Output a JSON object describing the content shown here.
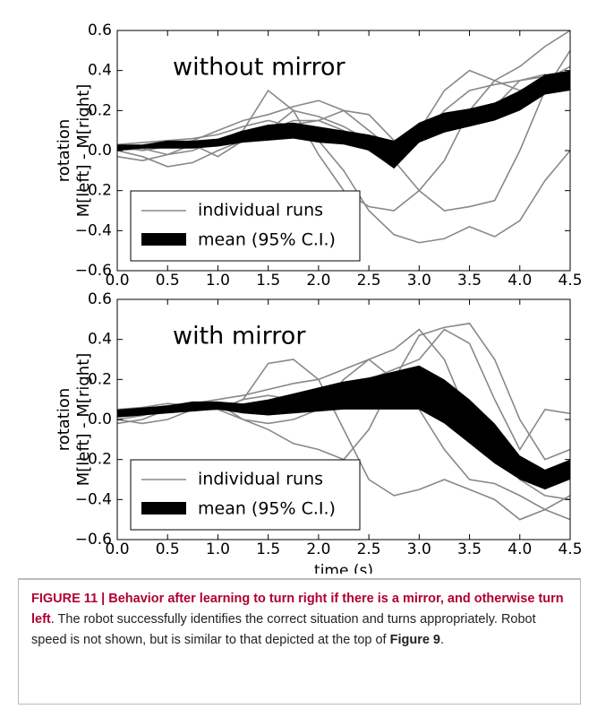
{
  "chart_data": [
    {
      "type": "line",
      "annotation": "without mirror",
      "ylabel": [
        "rotation",
        "M[left] - M[right]"
      ],
      "xlim": [
        0,
        4.5
      ],
      "ylim": [
        -0.6,
        0.6
      ],
      "xticks": [
        {
          "value": 0,
          "label": "0.0"
        },
        0.5,
        {
          "value": 1,
          "label": "1.0"
        },
        1.5,
        {
          "value": 2,
          "label": "2.0"
        },
        2.5,
        {
          "value": 3,
          "label": "3.0"
        },
        3.5,
        {
          "value": 4,
          "label": "4.0"
        },
        4.5
      ],
      "yticks": [
        {
          "value": -0.6,
          "label": "−0.6"
        },
        {
          "value": -0.4,
          "label": "−0.4"
        },
        {
          "value": -0.2,
          "label": "−0.2"
        },
        {
          "value": 0,
          "label": "0.0"
        },
        0.2,
        0.4,
        0.6
      ],
      "legend": "lower left",
      "runs": {
        "name": "individual runs",
        "color": "#888888",
        "x": [
          0,
          0.25,
          0.5,
          0.75,
          1,
          1.25,
          1.5,
          1.75,
          2,
          2.25,
          2.5,
          2.75,
          3,
          3.25,
          3.5,
          3.75,
          4,
          4.25,
          4.5
        ],
        "lines": [
          [
            0.0,
            0.01,
            -0.02,
            0.0,
            0.05,
            0.1,
            0.3,
            0.2,
            -0.02,
            -0.2,
            -0.28,
            -0.3,
            -0.2,
            -0.05,
            0.2,
            0.35,
            0.42,
            0.52,
            0.6
          ],
          [
            0.03,
            0.04,
            0.05,
            0.06,
            0.08,
            0.12,
            0.15,
            0.12,
            0.05,
            -0.1,
            -0.3,
            -0.42,
            -0.46,
            -0.44,
            -0.38,
            -0.43,
            -0.35,
            -0.15,
            0.0
          ],
          [
            0.0,
            -0.03,
            -0.08,
            -0.06,
            0.0,
            0.05,
            0.1,
            0.2,
            0.17,
            0.12,
            0.05,
            -0.05,
            -0.2,
            -0.3,
            -0.28,
            -0.25,
            0.0,
            0.3,
            0.5
          ],
          [
            0.02,
            0.0,
            0.02,
            0.05,
            0.1,
            0.15,
            0.18,
            0.22,
            0.25,
            0.2,
            0.1,
            0.0,
            0.05,
            0.2,
            0.3,
            0.33,
            0.35,
            0.37,
            0.38
          ],
          [
            0.0,
            0.02,
            0.05,
            0.03,
            -0.03,
            0.05,
            0.1,
            0.15,
            0.15,
            0.2,
            0.18,
            0.05,
            0.1,
            0.3,
            0.4,
            0.35,
            0.3,
            0.35,
            0.42
          ],
          [
            -0.03,
            -0.05,
            -0.02,
            0.03,
            0.05,
            0.08,
            0.1,
            0.13,
            0.15,
            0.1,
            0.0,
            -0.08,
            0.1,
            0.12,
            0.2,
            0.22,
            0.35,
            0.38,
            0.32
          ]
        ]
      },
      "band": {
        "name": "mean (95% C.I.)",
        "color": "#000000",
        "x": [
          0,
          0.25,
          0.5,
          0.75,
          1,
          1.25,
          1.5,
          1.75,
          2,
          2.25,
          2.5,
          2.75,
          3,
          3.25,
          3.5,
          3.75,
          4,
          4.25,
          4.5
        ],
        "lower": [
          0.0,
          0.01,
          0.01,
          0.01,
          0.02,
          0.04,
          0.05,
          0.06,
          0.04,
          0.03,
          0.0,
          -0.09,
          0.04,
          0.09,
          0.12,
          0.15,
          0.2,
          0.28,
          0.3
        ],
        "upper": [
          0.03,
          0.03,
          0.05,
          0.05,
          0.06,
          0.1,
          0.13,
          0.14,
          0.12,
          0.1,
          0.08,
          0.05,
          0.14,
          0.19,
          0.21,
          0.24,
          0.3,
          0.38,
          0.4
        ]
      }
    },
    {
      "type": "line",
      "annotation": "with mirror",
      "ylabel": [
        "rotation",
        "M[left] - M[right]"
      ],
      "xlabel": "time (s)",
      "xlim": [
        0,
        4.5
      ],
      "ylim": [
        -0.6,
        0.6
      ],
      "xticks": [
        {
          "value": 0,
          "label": "0.0"
        },
        0.5,
        {
          "value": 1,
          "label": "1.0"
        },
        1.5,
        {
          "value": 2,
          "label": "2.0"
        },
        2.5,
        {
          "value": 3,
          "label": "3.0"
        },
        3.5,
        {
          "value": 4,
          "label": "4.0"
        },
        4.5
      ],
      "yticks": [
        {
          "value": -0.6,
          "label": "−0.6"
        },
        {
          "value": -0.4,
          "label": "−0.4"
        },
        {
          "value": -0.2,
          "label": "−0.2"
        },
        {
          "value": 0,
          "label": "0.0"
        },
        0.2,
        0.4,
        0.6
      ],
      "legend": "lower left",
      "runs": {
        "name": "individual runs",
        "color": "#888888",
        "x": [
          0,
          0.25,
          0.5,
          0.75,
          1,
          1.25,
          1.5,
          1.75,
          2,
          2.25,
          2.5,
          2.75,
          3,
          3.25,
          3.5,
          3.75,
          4,
          4.25,
          4.5
        ],
        "lines": [
          [
            0.0,
            0.02,
            0.05,
            0.05,
            0.05,
            0.0,
            -0.05,
            -0.12,
            -0.15,
            -0.2,
            -0.05,
            0.2,
            0.42,
            0.46,
            0.48,
            0.3,
            0.0,
            -0.2,
            -0.15
          ],
          [
            -0.02,
            0.0,
            0.05,
            0.08,
            0.05,
            0.1,
            0.28,
            0.3,
            0.2,
            -0.05,
            -0.3,
            -0.38,
            -0.35,
            -0.3,
            -0.35,
            -0.4,
            -0.5,
            -0.45,
            -0.38
          ],
          [
            0.03,
            0.05,
            0.07,
            0.08,
            0.1,
            0.12,
            0.15,
            0.18,
            0.2,
            0.25,
            0.3,
            0.35,
            0.45,
            0.3,
            0.0,
            -0.15,
            -0.3,
            -0.38,
            -0.4
          ],
          [
            0.0,
            -0.02,
            0.0,
            0.05,
            0.08,
            0.0,
            -0.02,
            0.0,
            0.05,
            0.2,
            0.3,
            0.2,
            0.05,
            -0.15,
            -0.3,
            -0.32,
            -0.38,
            -0.45,
            -0.5
          ],
          [
            0.05,
            0.06,
            0.08,
            0.07,
            0.05,
            0.1,
            0.12,
            0.1,
            0.15,
            0.18,
            0.2,
            0.25,
            0.3,
            0.45,
            0.38,
            0.1,
            -0.15,
            0.05,
            0.03
          ]
        ]
      },
      "band": {
        "name": "mean (95% C.I.)",
        "color": "#000000",
        "x": [
          0,
          0.25,
          0.5,
          0.75,
          1,
          1.25,
          1.5,
          1.75,
          2,
          2.25,
          2.5,
          2.75,
          3,
          3.25,
          3.5,
          3.75,
          4,
          4.25,
          4.5
        ],
        "lower": [
          0.01,
          0.02,
          0.03,
          0.04,
          0.05,
          0.03,
          0.02,
          0.03,
          0.04,
          0.05,
          0.05,
          0.05,
          0.05,
          -0.02,
          -0.12,
          -0.22,
          -0.3,
          -0.35,
          -0.3
        ],
        "upper": [
          0.05,
          0.06,
          0.07,
          0.09,
          0.09,
          0.08,
          0.1,
          0.13,
          0.16,
          0.19,
          0.21,
          0.24,
          0.27,
          0.2,
          0.1,
          -0.02,
          -0.18,
          -0.25,
          -0.2
        ]
      }
    }
  ],
  "caption": {
    "label": "FIGURE 11 | Behavior after learning to turn right if there is a mirror, and otherwise turn left",
    "text": ". The robot successfully identifies the correct situation and turns appropriately. Robot speed is not shown, but is similar to that depicted at the top of ",
    "ref": "Figure 9",
    "end": "."
  }
}
